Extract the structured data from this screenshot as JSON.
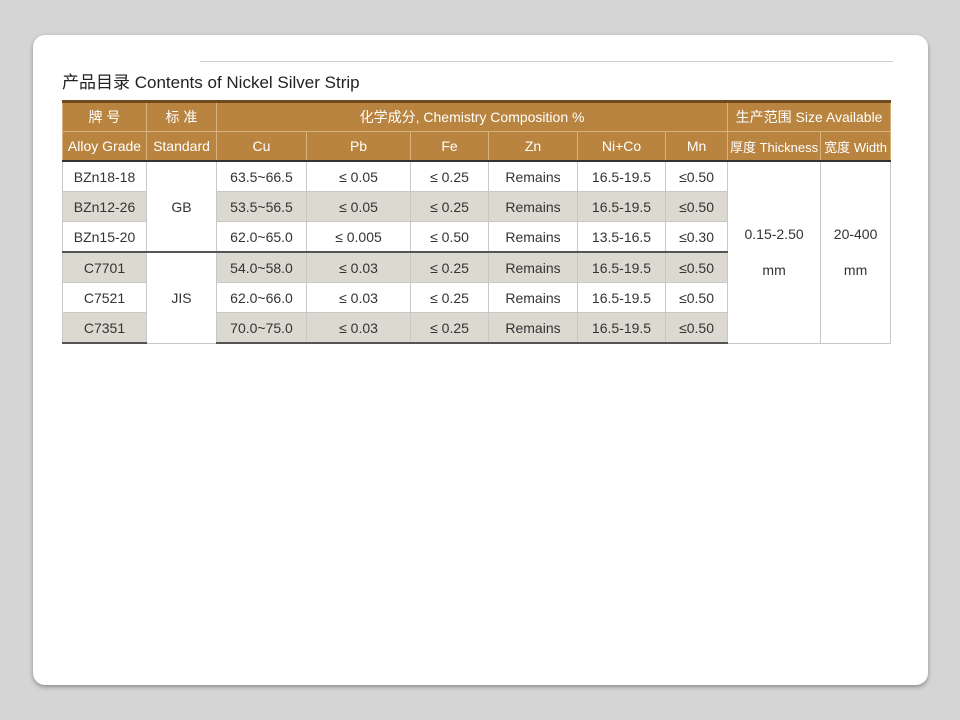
{
  "title": "产品目录 Contents of Nickel Silver Strip",
  "header": {
    "grade_cn": "牌 号",
    "standard_cn": "标 准",
    "chem": "化学成分, Chemistry Composition %",
    "size": "生产范围 Size Available",
    "grade": "Alloy Grade",
    "standard": "Standard",
    "cu": "Cu",
    "pb": "Pb",
    "fe": "Fe",
    "zn": "Zn",
    "nico": "Ni+Co",
    "mn": "Mn",
    "thickness": "厚度 Thickness",
    "width": "宽度 Width"
  },
  "standards": [
    "GB",
    "JIS"
  ],
  "thickness": [
    "0.15-2.50",
    "mm"
  ],
  "width": [
    "20-400",
    "mm"
  ],
  "rows": [
    [
      "BZn18-18",
      "63.5~66.5",
      "≤ 0.05",
      "≤ 0.25",
      "Remains",
      "16.5-19.5",
      "≤0.50"
    ],
    [
      "BZn12-26",
      "53.5~56.5",
      "≤ 0.05",
      "≤ 0.25",
      "Remains",
      "16.5-19.5",
      "≤0.50"
    ],
    [
      "BZn15-20",
      "62.0~65.0",
      "≤ 0.005",
      "≤ 0.50",
      "Remains",
      "13.5-16.5",
      "≤0.30"
    ],
    [
      "C7701",
      "54.0~58.0",
      "≤ 0.03",
      "≤ 0.25",
      "Remains",
      "16.5-19.5",
      "≤0.50"
    ],
    [
      "C7521",
      "62.0~66.0",
      "≤ 0.03",
      "≤ 0.25",
      "Remains",
      "16.5-19.5",
      "≤0.50"
    ],
    [
      "C7351",
      "70.0~75.0",
      "≤ 0.03",
      "≤ 0.25",
      "Remains",
      "16.5-19.5",
      "≤0.50"
    ]
  ]
}
